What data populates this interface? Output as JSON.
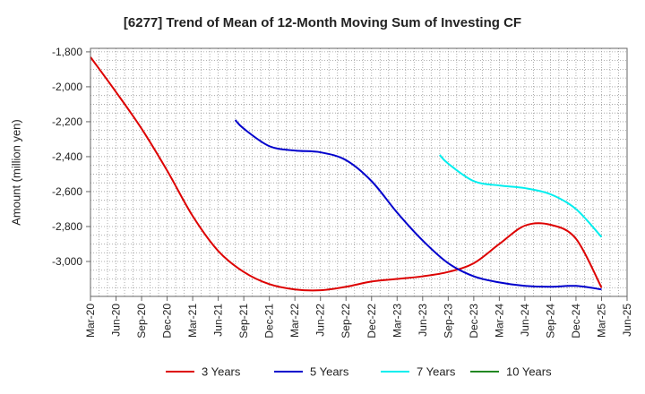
{
  "chart_data": {
    "type": "line",
    "title": "[6277]  Trend of Mean of 12-Month Moving Sum of Investing CF",
    "ylabel": "Amount (million yen)",
    "xlabel": "",
    "ylim": [
      -3200,
      -1780
    ],
    "y_ticks": [
      -1800,
      -2000,
      -2200,
      -2400,
      -2600,
      -2800,
      -3000
    ],
    "y_tick_labels": [
      "-1,800",
      "-2,000",
      "-2,200",
      "-2,400",
      "-2,600",
      "-2,800",
      "-3,000"
    ],
    "x_range": [
      "Mar-20",
      "Jun-25"
    ],
    "x_ticks": [
      "Mar-20",
      "Jun-20",
      "Sep-20",
      "Dec-20",
      "Mar-21",
      "Jun-21",
      "Sep-21",
      "Dec-21",
      "Mar-22",
      "Jun-22",
      "Sep-22",
      "Dec-22",
      "Mar-23",
      "Jun-23",
      "Sep-23",
      "Dec-23",
      "Mar-24",
      "Jun-24",
      "Sep-24",
      "Dec-24",
      "Mar-25",
      "Jun-25"
    ],
    "grid": true,
    "legend_position": "bottom",
    "series": [
      {
        "name": "3 Years",
        "color": "#dd0000",
        "points": [
          [
            "Mar-20",
            -1830
          ],
          [
            "Jun-20",
            -2030
          ],
          [
            "Sep-20",
            -2240
          ],
          [
            "Dec-20",
            -2480
          ],
          [
            "Mar-21",
            -2740
          ],
          [
            "Jun-21",
            -2940
          ],
          [
            "Sep-21",
            -3060
          ],
          [
            "Dec-21",
            -3130
          ],
          [
            "Mar-22",
            -3160
          ],
          [
            "Jun-22",
            -3165
          ],
          [
            "Sep-22",
            -3145
          ],
          [
            "Dec-22",
            -3115
          ],
          [
            "Mar-23",
            -3100
          ],
          [
            "Jun-23",
            -3085
          ],
          [
            "Sep-23",
            -3060
          ],
          [
            "Dec-23",
            -3010
          ],
          [
            "Mar-24",
            -2900
          ],
          [
            "Jun-24",
            -2795
          ],
          [
            "Sep-24",
            -2790
          ],
          [
            "Dec-24",
            -2870
          ],
          [
            "Mar-25",
            -3150
          ]
        ]
      },
      {
        "name": "5 Years",
        "color": "#0000cc",
        "points": [
          [
            "Aug-21",
            -2190
          ],
          [
            "Sep-21",
            -2240
          ],
          [
            "Dec-21",
            -2340
          ],
          [
            "Mar-22",
            -2365
          ],
          [
            "Jun-22",
            -2375
          ],
          [
            "Sep-22",
            -2420
          ],
          [
            "Dec-22",
            -2540
          ],
          [
            "Mar-23",
            -2720
          ],
          [
            "Jun-23",
            -2880
          ],
          [
            "Sep-23",
            -3010
          ],
          [
            "Dec-23",
            -3085
          ],
          [
            "Mar-24",
            -3120
          ],
          [
            "Jun-24",
            -3140
          ],
          [
            "Sep-24",
            -3145
          ],
          [
            "Dec-24",
            -3140
          ],
          [
            "Mar-25",
            -3160
          ]
        ]
      },
      {
        "name": "7 Years",
        "color": "#00eeee",
        "points": [
          [
            "Aug-23",
            -2390
          ],
          [
            "Sep-23",
            -2440
          ],
          [
            "Dec-23",
            -2540
          ],
          [
            "Mar-24",
            -2565
          ],
          [
            "Jun-24",
            -2580
          ],
          [
            "Sep-24",
            -2615
          ],
          [
            "Dec-24",
            -2700
          ],
          [
            "Mar-25",
            -2860
          ]
        ]
      },
      {
        "name": "10 Years",
        "color": "#228822",
        "points": []
      }
    ]
  }
}
